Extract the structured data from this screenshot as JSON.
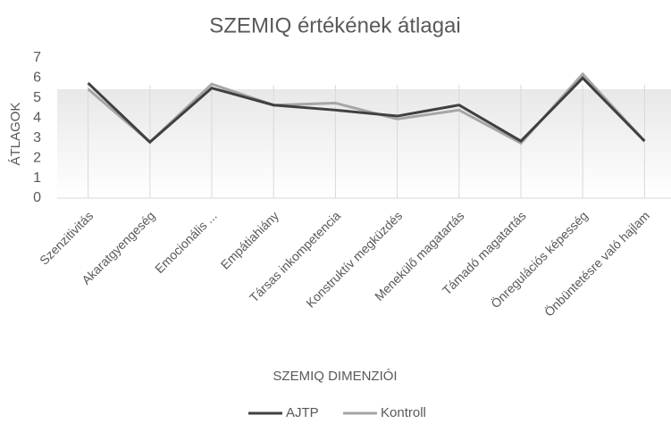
{
  "chart_data": {
    "type": "line",
    "title": "SZEMIQ értékének átlagai",
    "x_label": "SZEMIQ DIMENZIÓI",
    "y_label": "ÁTLAGOK",
    "categories": [
      "Szenzitivitás",
      "Akaratgyengeség",
      "Emocionális ...",
      "Empátiahiány",
      "Társas inkompetencia",
      "Konstruktív megküzdés",
      "Menekülő magatartás",
      "Támadó magatartás",
      "Önregulációs képesség",
      "Önbüntetésre való hajlam"
    ],
    "series": [
      {
        "name": "AJTP",
        "color": "#404040",
        "values": [
          5.75,
          2.8,
          5.5,
          4.65,
          4.4,
          4.1,
          4.65,
          2.85,
          6.0,
          2.85
        ]
      },
      {
        "name": "Kontroll",
        "color": "#a6a6a6",
        "values": [
          5.45,
          2.8,
          5.7,
          4.65,
          4.75,
          3.95,
          4.4,
          2.75,
          6.2,
          2.85
        ]
      }
    ],
    "ylim": [
      0,
      7
    ],
    "yticks": [
      0,
      1,
      2,
      3,
      4,
      5,
      6,
      7
    ],
    "legend": "bottom"
  }
}
